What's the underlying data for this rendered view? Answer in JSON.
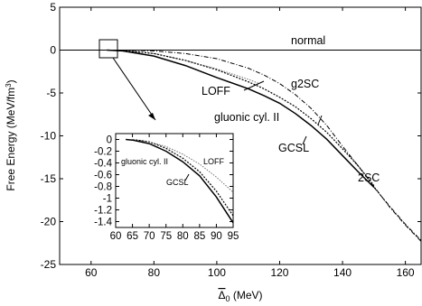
{
  "chart_data": [
    {
      "type": "line",
      "title": "",
      "xlabel_sym": "Δ",
      "xlabel_sub": "0",
      "xlabel_rest": " (MeV)",
      "ylabel_main": "Free Energy (MeV/fm",
      "ylabel_sup": "3",
      "ylabel_close": ")",
      "xlim": [
        50,
        165
      ],
      "ylim": [
        -25,
        5
      ],
      "xticks": [
        "60",
        "80",
        "100",
        "120",
        "140",
        "160"
      ],
      "yticks": [
        "5",
        "0",
        "-5",
        "-10",
        "-15",
        "-20",
        "-25"
      ],
      "grid": false,
      "series": [
        {
          "name": "normal",
          "x": [
            50,
            165
          ],
          "y": [
            0,
            0
          ]
        },
        {
          "name": "g2SC",
          "x": [
            50,
            70,
            80,
            90,
            100,
            110,
            115,
            120,
            125,
            130,
            135,
            140,
            145,
            150,
            155,
            160,
            165
          ],
          "y": [
            0,
            0,
            -0.1,
            -0.4,
            -1.0,
            -2.1,
            -2.9,
            -3.9,
            -5.2,
            -6.8,
            -8.8,
            -11.2,
            -13.5,
            -15.9,
            -18.3,
            -20.4,
            -22.3
          ]
        },
        {
          "name": "LOFF",
          "x": [
            65,
            70,
            80,
            90,
            100,
            110,
            113.5
          ],
          "y": [
            0,
            -0.05,
            -0.4,
            -1.2,
            -2.2,
            -3.4,
            -3.9
          ]
        },
        {
          "name": "gluonic cyl. II",
          "x": [
            70,
            80,
            90,
            100,
            110,
            115,
            120,
            125,
            130,
            135,
            140,
            145,
            150
          ],
          "y": [
            -0.05,
            -0.4,
            -1.2,
            -2.3,
            -3.7,
            -4.5,
            -5.5,
            -6.6,
            -8.0,
            -9.6,
            -11.5,
            -13.5,
            -15.8
          ]
        },
        {
          "name": "GCSL",
          "x": [
            65,
            70,
            80,
            90,
            100,
            110,
            115,
            120,
            125,
            130,
            135,
            140,
            145,
            150
          ],
          "y": [
            0,
            -0.1,
            -0.7,
            -1.8,
            -3.2,
            -4.5,
            -5.3,
            -6.2,
            -7.4,
            -8.8,
            -10.4,
            -12.3,
            -14.2,
            -16.0
          ]
        },
        {
          "name": "2SC",
          "x": [
            150,
            155,
            160,
            165
          ],
          "y": [
            -16.0,
            -18.2,
            -20.3,
            -22.2
          ]
        }
      ],
      "annotations": [
        "normal",
        "g2SC",
        "LOFF",
        "gluonic cyl. II",
        "GCSL",
        "2SC"
      ]
    },
    {
      "type": "line",
      "title": "",
      "xlim": [
        60,
        95
      ],
      "ylim": [
        -1.5,
        0.1
      ],
      "xticks": [
        "60",
        "65",
        "70",
        "75",
        "80",
        "85",
        "90",
        "95"
      ],
      "yticks": [
        "0",
        "-0.2",
        "-0.4",
        "-0.6",
        "-0.8",
        "-1",
        "-1.2",
        "-1.4"
      ],
      "series": [
        {
          "name": "GCSL",
          "x": [
            63,
            65,
            70,
            75,
            80,
            85,
            90,
            95
          ],
          "y": [
            0,
            -0.01,
            -0.07,
            -0.2,
            -0.38,
            -0.62,
            -0.98,
            -1.42
          ]
        },
        {
          "name": "gluonic cyl. II",
          "x": [
            65,
            70,
            75,
            80,
            85,
            90,
            95
          ],
          "y": [
            0,
            -0.04,
            -0.15,
            -0.32,
            -0.55,
            -0.88,
            -1.3
          ]
        },
        {
          "name": "LOFF",
          "x": [
            65,
            70,
            75,
            80,
            85,
            90,
            95
          ],
          "y": [
            0,
            -0.04,
            -0.12,
            -0.25,
            -0.42,
            -0.64,
            -0.9
          ]
        }
      ],
      "annotations": [
        "gluonic cyl. II",
        "LOFF",
        "GCSL"
      ]
    }
  ]
}
